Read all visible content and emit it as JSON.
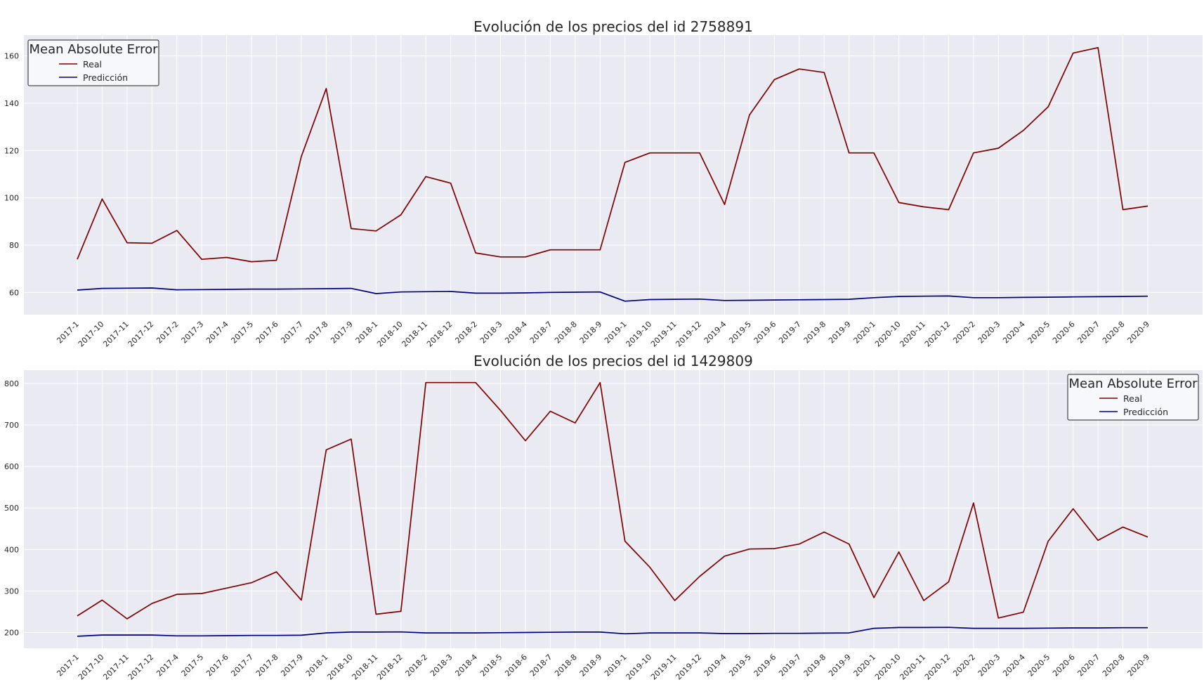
{
  "chart_data": [
    {
      "type": "line",
      "title": "Evolución de los precios del id 2758891",
      "categories": [
        "2017-1",
        "2017-10",
        "2017-11",
        "2017-12",
        "2017-2",
        "2017-3",
        "2017-4",
        "2017-5",
        "2017-6",
        "2017-7",
        "2017-8",
        "2017-9",
        "2018-1",
        "2018-10",
        "2018-11",
        "2018-12",
        "2018-2",
        "2018-3",
        "2018-4",
        "2018-7",
        "2018-8",
        "2018-9",
        "2019-1",
        "2019-10",
        "2019-11",
        "2019-12",
        "2019-4",
        "2019-5",
        "2019-6",
        "2019-7",
        "2019-8",
        "2019-9",
        "2020-1",
        "2020-10",
        "2020-11",
        "2020-12",
        "2020-2",
        "2020-3",
        "2020-4",
        "2020-5",
        "2020-6",
        "2020-7",
        "2020-8",
        "2020-9"
      ],
      "series": [
        {
          "name": "Real",
          "color": "#800000",
          "values": [
            74,
            99.5,
            81,
            80.8,
            86.2,
            74,
            74.8,
            73,
            73.6,
            117.5,
            146.2,
            87,
            86,
            92.8,
            109,
            106.2,
            76.7,
            75,
            75,
            78,
            78,
            78,
            115,
            119,
            119,
            119,
            97.2,
            135,
            150,
            154.5,
            153,
            119,
            119,
            98,
            96.2,
            95,
            119,
            121,
            128.5,
            138.5,
            161.2,
            163.5,
            95,
            96.5
          ]
        },
        {
          "name": "Predicción",
          "color": "#00007f",
          "values": [
            61,
            61.7,
            61.8,
            61.9,
            61.1,
            61.2,
            61.3,
            61.4,
            61.4,
            61.5,
            61.6,
            61.7,
            59.5,
            60.2,
            60.3,
            60.4,
            59.7,
            59.7,
            59.8,
            60,
            60.1,
            60.2,
            56.3,
            57,
            57.1,
            57.2,
            56.6,
            56.7,
            56.8,
            56.9,
            57,
            57.1,
            57.8,
            58.3,
            58.4,
            58.5,
            57.8,
            57.8,
            57.9,
            58,
            58.1,
            58.2,
            58.3,
            58.4
          ]
        }
      ],
      "yticks": [
        60,
        80,
        100,
        120,
        140,
        160
      ],
      "ylim": [
        50.6,
        168.8
      ],
      "grid": true,
      "legend": {
        "title": "Mean Absolute Error",
        "position": "top-left"
      }
    },
    {
      "type": "line",
      "title": "Evolución de los precios del id 1429809",
      "categories": [
        "2017-1",
        "2017-10",
        "2017-11",
        "2017-12",
        "2017-4",
        "2017-5",
        "2017-6",
        "2017-7",
        "2017-8",
        "2017-9",
        "2018-1",
        "2018-10",
        "2018-11",
        "2018-12",
        "2018-2",
        "2018-3",
        "2018-4",
        "2018-5",
        "2018-6",
        "2018-7",
        "2018-8",
        "2018-9",
        "2019-1",
        "2019-10",
        "2019-11",
        "2019-12",
        "2019-4",
        "2019-5",
        "2019-6",
        "2019-7",
        "2019-8",
        "2019-9",
        "2020-1",
        "2020-10",
        "2020-11",
        "2020-12",
        "2020-2",
        "2020-3",
        "2020-4",
        "2020-5",
        "2020-6",
        "2020-7",
        "2020-8",
        "2020-9"
      ],
      "series": [
        {
          "name": "Real",
          "color": "#800000",
          "values": [
            240,
            278,
            233,
            270,
            292,
            294,
            307,
            320,
            346,
            278,
            640,
            666,
            244,
            251,
            802,
            802,
            802,
            735,
            662,
            733,
            705,
            802,
            420,
            357,
            277,
            335,
            384,
            401,
            402,
            413,
            442,
            413,
            284,
            394,
            277,
            322,
            512,
            235,
            249,
            420,
            498,
            422,
            454,
            430
          ]
        },
        {
          "name": "Predicción",
          "color": "#00007f",
          "values": [
            191,
            194,
            194,
            194,
            192,
            192,
            192.5,
            193,
            193,
            193.5,
            199,
            201,
            201,
            201.5,
            199,
            199,
            199,
            199.5,
            200,
            200.5,
            201,
            201,
            197,
            199,
            199,
            199,
            197.5,
            197.5,
            198,
            198,
            198.5,
            199,
            210,
            212,
            212,
            212.5,
            210,
            210,
            210,
            210.5,
            211,
            211,
            211.5,
            211.5
          ]
        }
      ],
      "yticks": [
        200,
        300,
        400,
        500,
        600,
        700,
        800
      ],
      "ylim": [
        162,
        832
      ],
      "grid": true,
      "legend": {
        "title": "Mean Absolute Error",
        "position": "top-right"
      }
    }
  ]
}
